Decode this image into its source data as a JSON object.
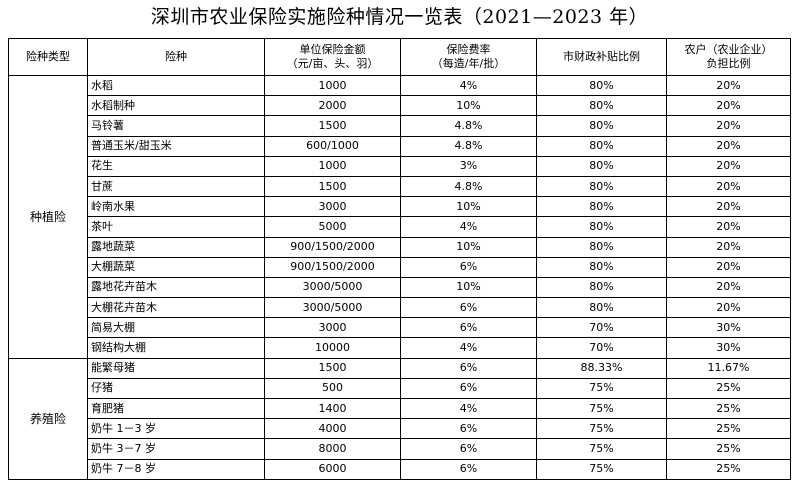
{
  "title": "深圳市农业保险实施险种情况一览表（2021—2023 年）",
  "headers": {
    "type": "险种类型",
    "name": "险种",
    "amount_line1": "单位保险金额",
    "amount_line2": "（元/亩、头、羽）",
    "rate_line1": "保险费率",
    "rate_line2": "（每造/年/批）",
    "subsidy": "市财政补贴比例",
    "farmer_line1": "农户（农业企业）",
    "farmer_line2": "负担比例"
  },
  "groups": [
    {
      "category": "种植险",
      "rows": [
        {
          "name": "水稻",
          "amount": "1000",
          "rate": "4%",
          "subsidy": "80%",
          "farmer": "20%"
        },
        {
          "name": "水稻制种",
          "amount": "2000",
          "rate": "10%",
          "subsidy": "80%",
          "farmer": "20%"
        },
        {
          "name": "马铃薯",
          "amount": "1500",
          "rate": "4.8%",
          "subsidy": "80%",
          "farmer": "20%"
        },
        {
          "name": "普通玉米/甜玉米",
          "amount": "600/1000",
          "rate": "4.8%",
          "subsidy": "80%",
          "farmer": "20%"
        },
        {
          "name": "花生",
          "amount": "1000",
          "rate": "3%",
          "subsidy": "80%",
          "farmer": "20%"
        },
        {
          "name": "甘蔗",
          "amount": "1500",
          "rate": "4.8%",
          "subsidy": "80%",
          "farmer": "20%"
        },
        {
          "name": "岭南水果",
          "amount": "3000",
          "rate": "10%",
          "subsidy": "80%",
          "farmer": "20%"
        },
        {
          "name": "茶叶",
          "amount": "5000",
          "rate": "4%",
          "subsidy": "80%",
          "farmer": "20%"
        },
        {
          "name": "露地蔬菜",
          "amount": "900/1500/2000",
          "rate": "10%",
          "subsidy": "80%",
          "farmer": "20%"
        },
        {
          "name": "大棚蔬菜",
          "amount": "900/1500/2000",
          "rate": "6%",
          "subsidy": "80%",
          "farmer": "20%"
        },
        {
          "name": "露地花卉苗木",
          "amount": "3000/5000",
          "rate": "10%",
          "subsidy": "80%",
          "farmer": "20%"
        },
        {
          "name": "大棚花卉苗木",
          "amount": "3000/5000",
          "rate": "6%",
          "subsidy": "80%",
          "farmer": "20%"
        },
        {
          "name": "简易大棚",
          "amount": "3000",
          "rate": "6%",
          "subsidy": "70%",
          "farmer": "30%"
        },
        {
          "name": "钢结构大棚",
          "amount": "10000",
          "rate": "4%",
          "subsidy": "70%",
          "farmer": "30%"
        }
      ]
    },
    {
      "category": "养殖险",
      "rows": [
        {
          "name": "能繁母猪",
          "amount": "1500",
          "rate": "6%",
          "subsidy": "88.33%",
          "farmer": "11.67%"
        },
        {
          "name": "仔猪",
          "amount": "500",
          "rate": "6%",
          "subsidy": "75%",
          "farmer": "25%"
        },
        {
          "name": "育肥猪",
          "amount": "1400",
          "rate": "4%",
          "subsidy": "75%",
          "farmer": "25%"
        },
        {
          "name": "奶牛 1－3 岁",
          "amount": "4000",
          "rate": "6%",
          "subsidy": "75%",
          "farmer": "25%"
        },
        {
          "name": "奶牛 3－7 岁",
          "amount": "8000",
          "rate": "6%",
          "subsidy": "75%",
          "farmer": "25%"
        },
        {
          "name": "奶牛 7－8 岁",
          "amount": "6000",
          "rate": "6%",
          "subsidy": "75%",
          "farmer": "25%"
        }
      ]
    }
  ]
}
